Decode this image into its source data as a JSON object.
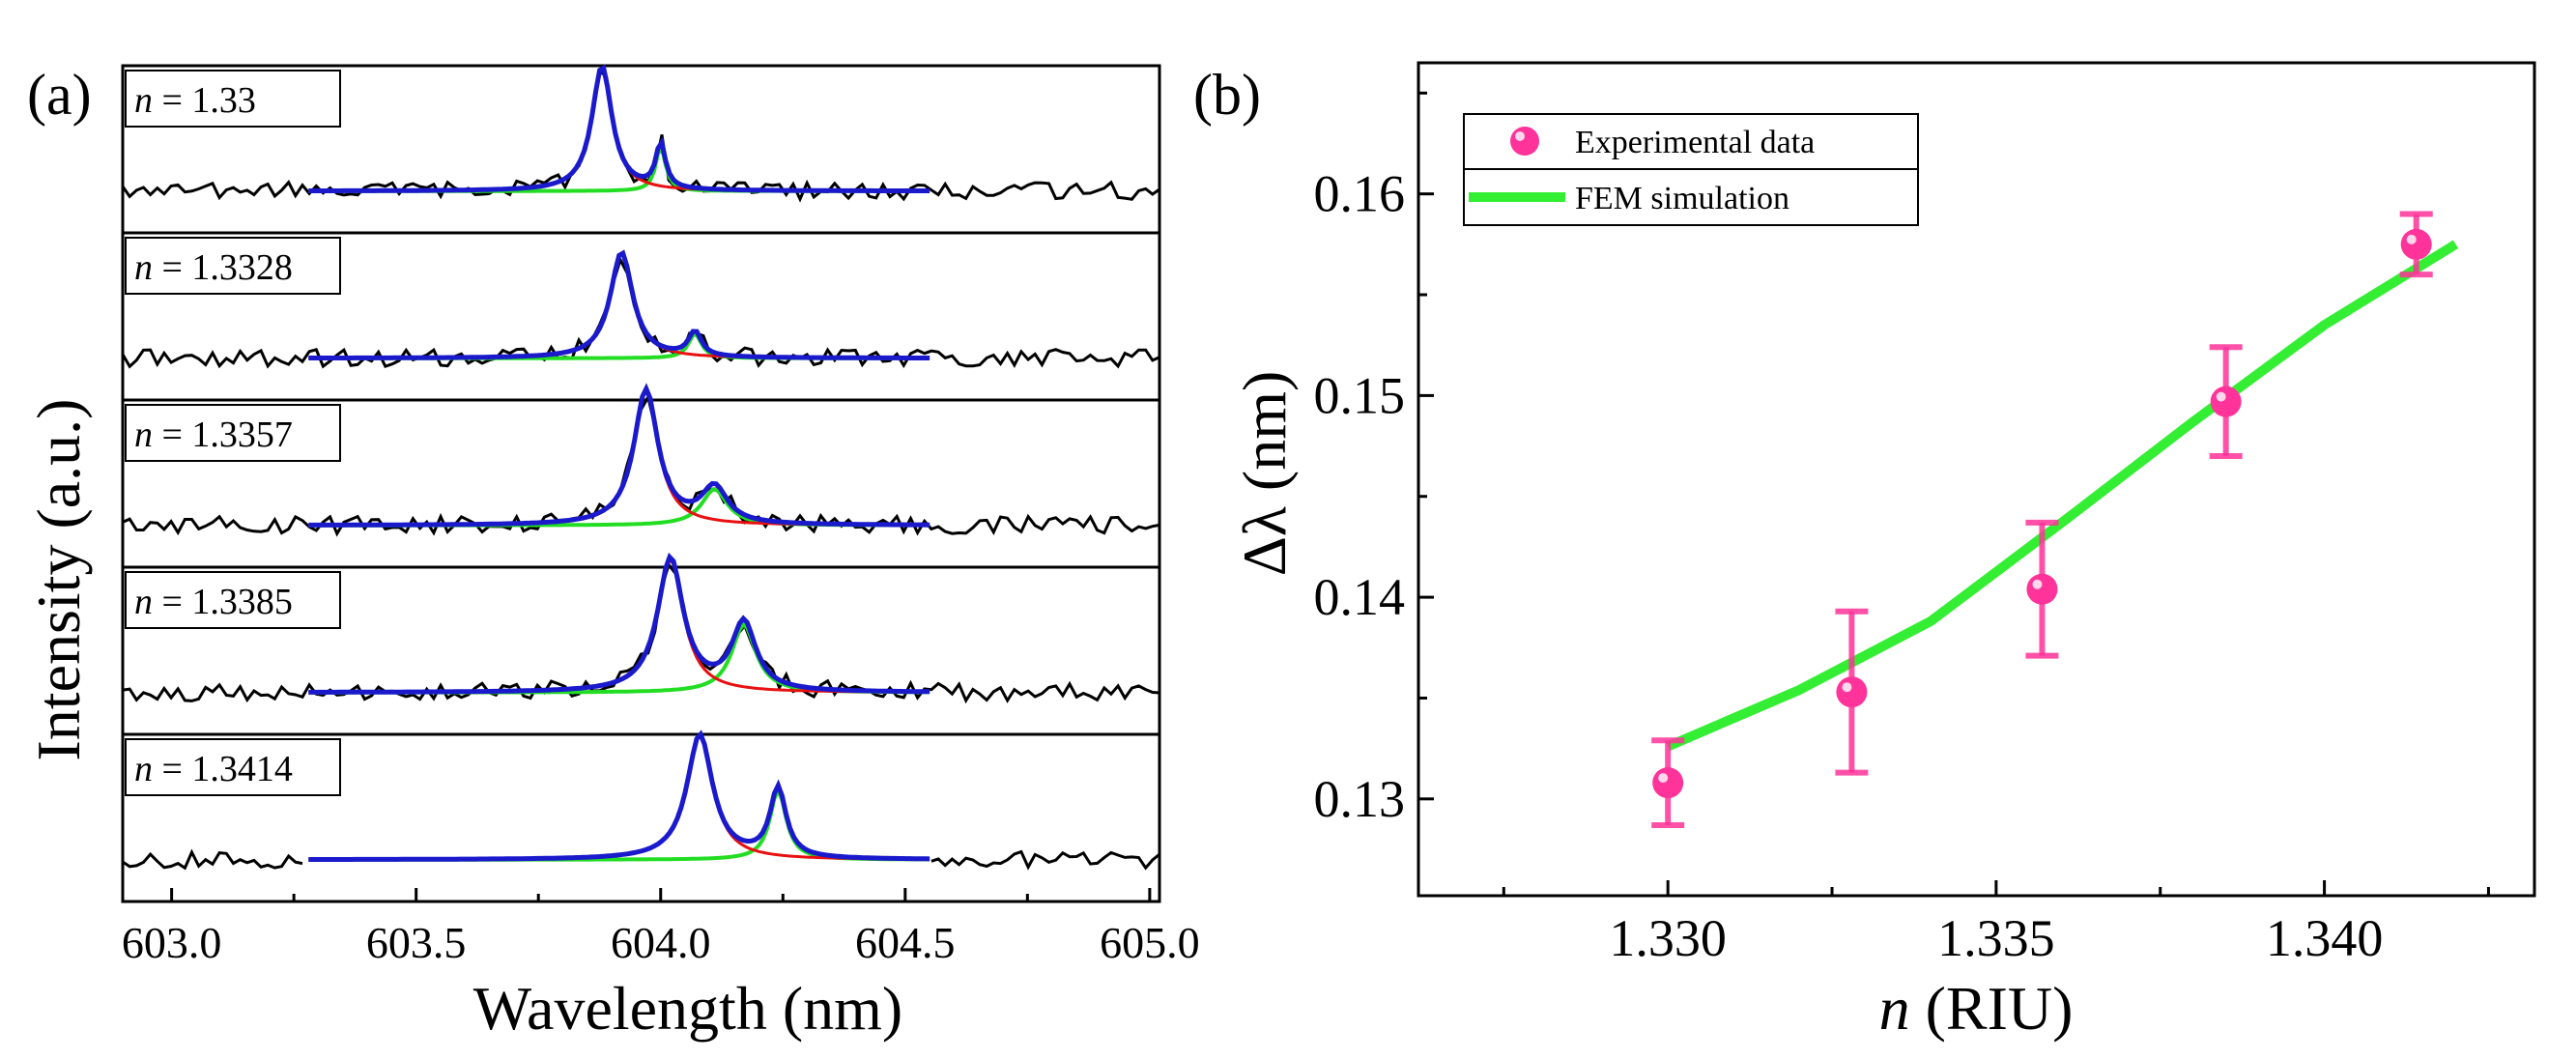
{
  "chart_data": [
    {
      "panel_label": "(a)",
      "type": "line",
      "title": "",
      "xlabel": "Wavelength (nm)",
      "ylabel": "Intensity (a.u.)",
      "xlim": [
        602.9,
        605.02
      ],
      "x_ticks": [
        "603.0",
        "603.5",
        "604.0",
        "604.5",
        "605.0"
      ],
      "x_tick_values": [
        603.0,
        603.5,
        604.0,
        604.5,
        605.0
      ],
      "colors": {
        "measured": "#000000",
        "fit": "#1a1acc",
        "peak1": "#e81010",
        "peak2": "#22dd22"
      },
      "fit_range": [
        603.28,
        604.55
      ],
      "subplots": [
        {
          "label_prefix": "n",
          "label_value": " = 1.33",
          "n": 1.33,
          "peaks": [
            {
              "center": 603.88,
              "height": 0.86,
              "width": 0.025
            },
            {
              "center": 604.0,
              "height": 0.31,
              "width": 0.012
            }
          ]
        },
        {
          "label_prefix": "n",
          "label_value": " = 1.3328",
          "n": 1.3328,
          "peaks": [
            {
              "center": 603.92,
              "height": 0.73,
              "width": 0.028
            },
            {
              "center": 604.07,
              "height": 0.17,
              "width": 0.016
            }
          ]
        },
        {
          "label_prefix": "n",
          "label_value": " = 1.3357",
          "n": 1.3357,
          "peaks": [
            {
              "center": 603.97,
              "height": 0.93,
              "width": 0.03
            },
            {
              "center": 604.11,
              "height": 0.25,
              "width": 0.032
            }
          ]
        },
        {
          "label_prefix": "n",
          "label_value": " = 1.3385",
          "n": 1.3385,
          "peaks": [
            {
              "center": 604.02,
              "height": 0.92,
              "width": 0.032
            },
            {
              "center": 604.17,
              "height": 0.47,
              "width": 0.03
            }
          ]
        },
        {
          "label_prefix": "n",
          "label_value": " = 1.3414",
          "n": 1.3414,
          "peaks": [
            {
              "center": 604.08,
              "height": 0.86,
              "width": 0.032
            },
            {
              "center": 604.24,
              "height": 0.48,
              "width": 0.02
            }
          ]
        }
      ]
    },
    {
      "panel_label": "(b)",
      "type": "scatter",
      "title": "",
      "xlabel_italic": "n",
      "xlabel_rest": " (RIU)",
      "ylabel": "Δλ (nm)",
      "xlim": [
        1.3262,
        1.3432
      ],
      "ylim": [
        0.1252,
        0.1665
      ],
      "x_ticks": [
        "1.330",
        "1.335",
        "1.340"
      ],
      "x_tick_values": [
        1.33,
        1.335,
        1.34
      ],
      "y_ticks": [
        "0.13",
        "0.14",
        "0.15",
        "0.16"
      ],
      "y_tick_values": [
        0.13,
        0.14,
        0.15,
        0.16
      ],
      "legend_position": "top-left",
      "series": [
        {
          "name": "Experimental data",
          "kind": "points_with_error",
          "color": "#ff3399",
          "x": [
            1.33,
            1.3328,
            1.3357,
            1.3385,
            1.3414
          ],
          "y": [
            0.1308,
            0.1353,
            0.1404,
            0.1497,
            0.1575
          ],
          "err": [
            0.0021,
            0.004,
            0.0033,
            0.0027,
            0.0015
          ]
        },
        {
          "name": "FEM simulation",
          "kind": "line",
          "color": "#33ee33",
          "x": [
            1.33,
            1.332,
            1.334,
            1.336,
            1.338,
            1.34,
            1.342
          ],
          "y": [
            0.1326,
            0.1354,
            0.1388,
            0.1437,
            0.1487,
            0.1535,
            0.1575
          ]
        }
      ]
    }
  ]
}
